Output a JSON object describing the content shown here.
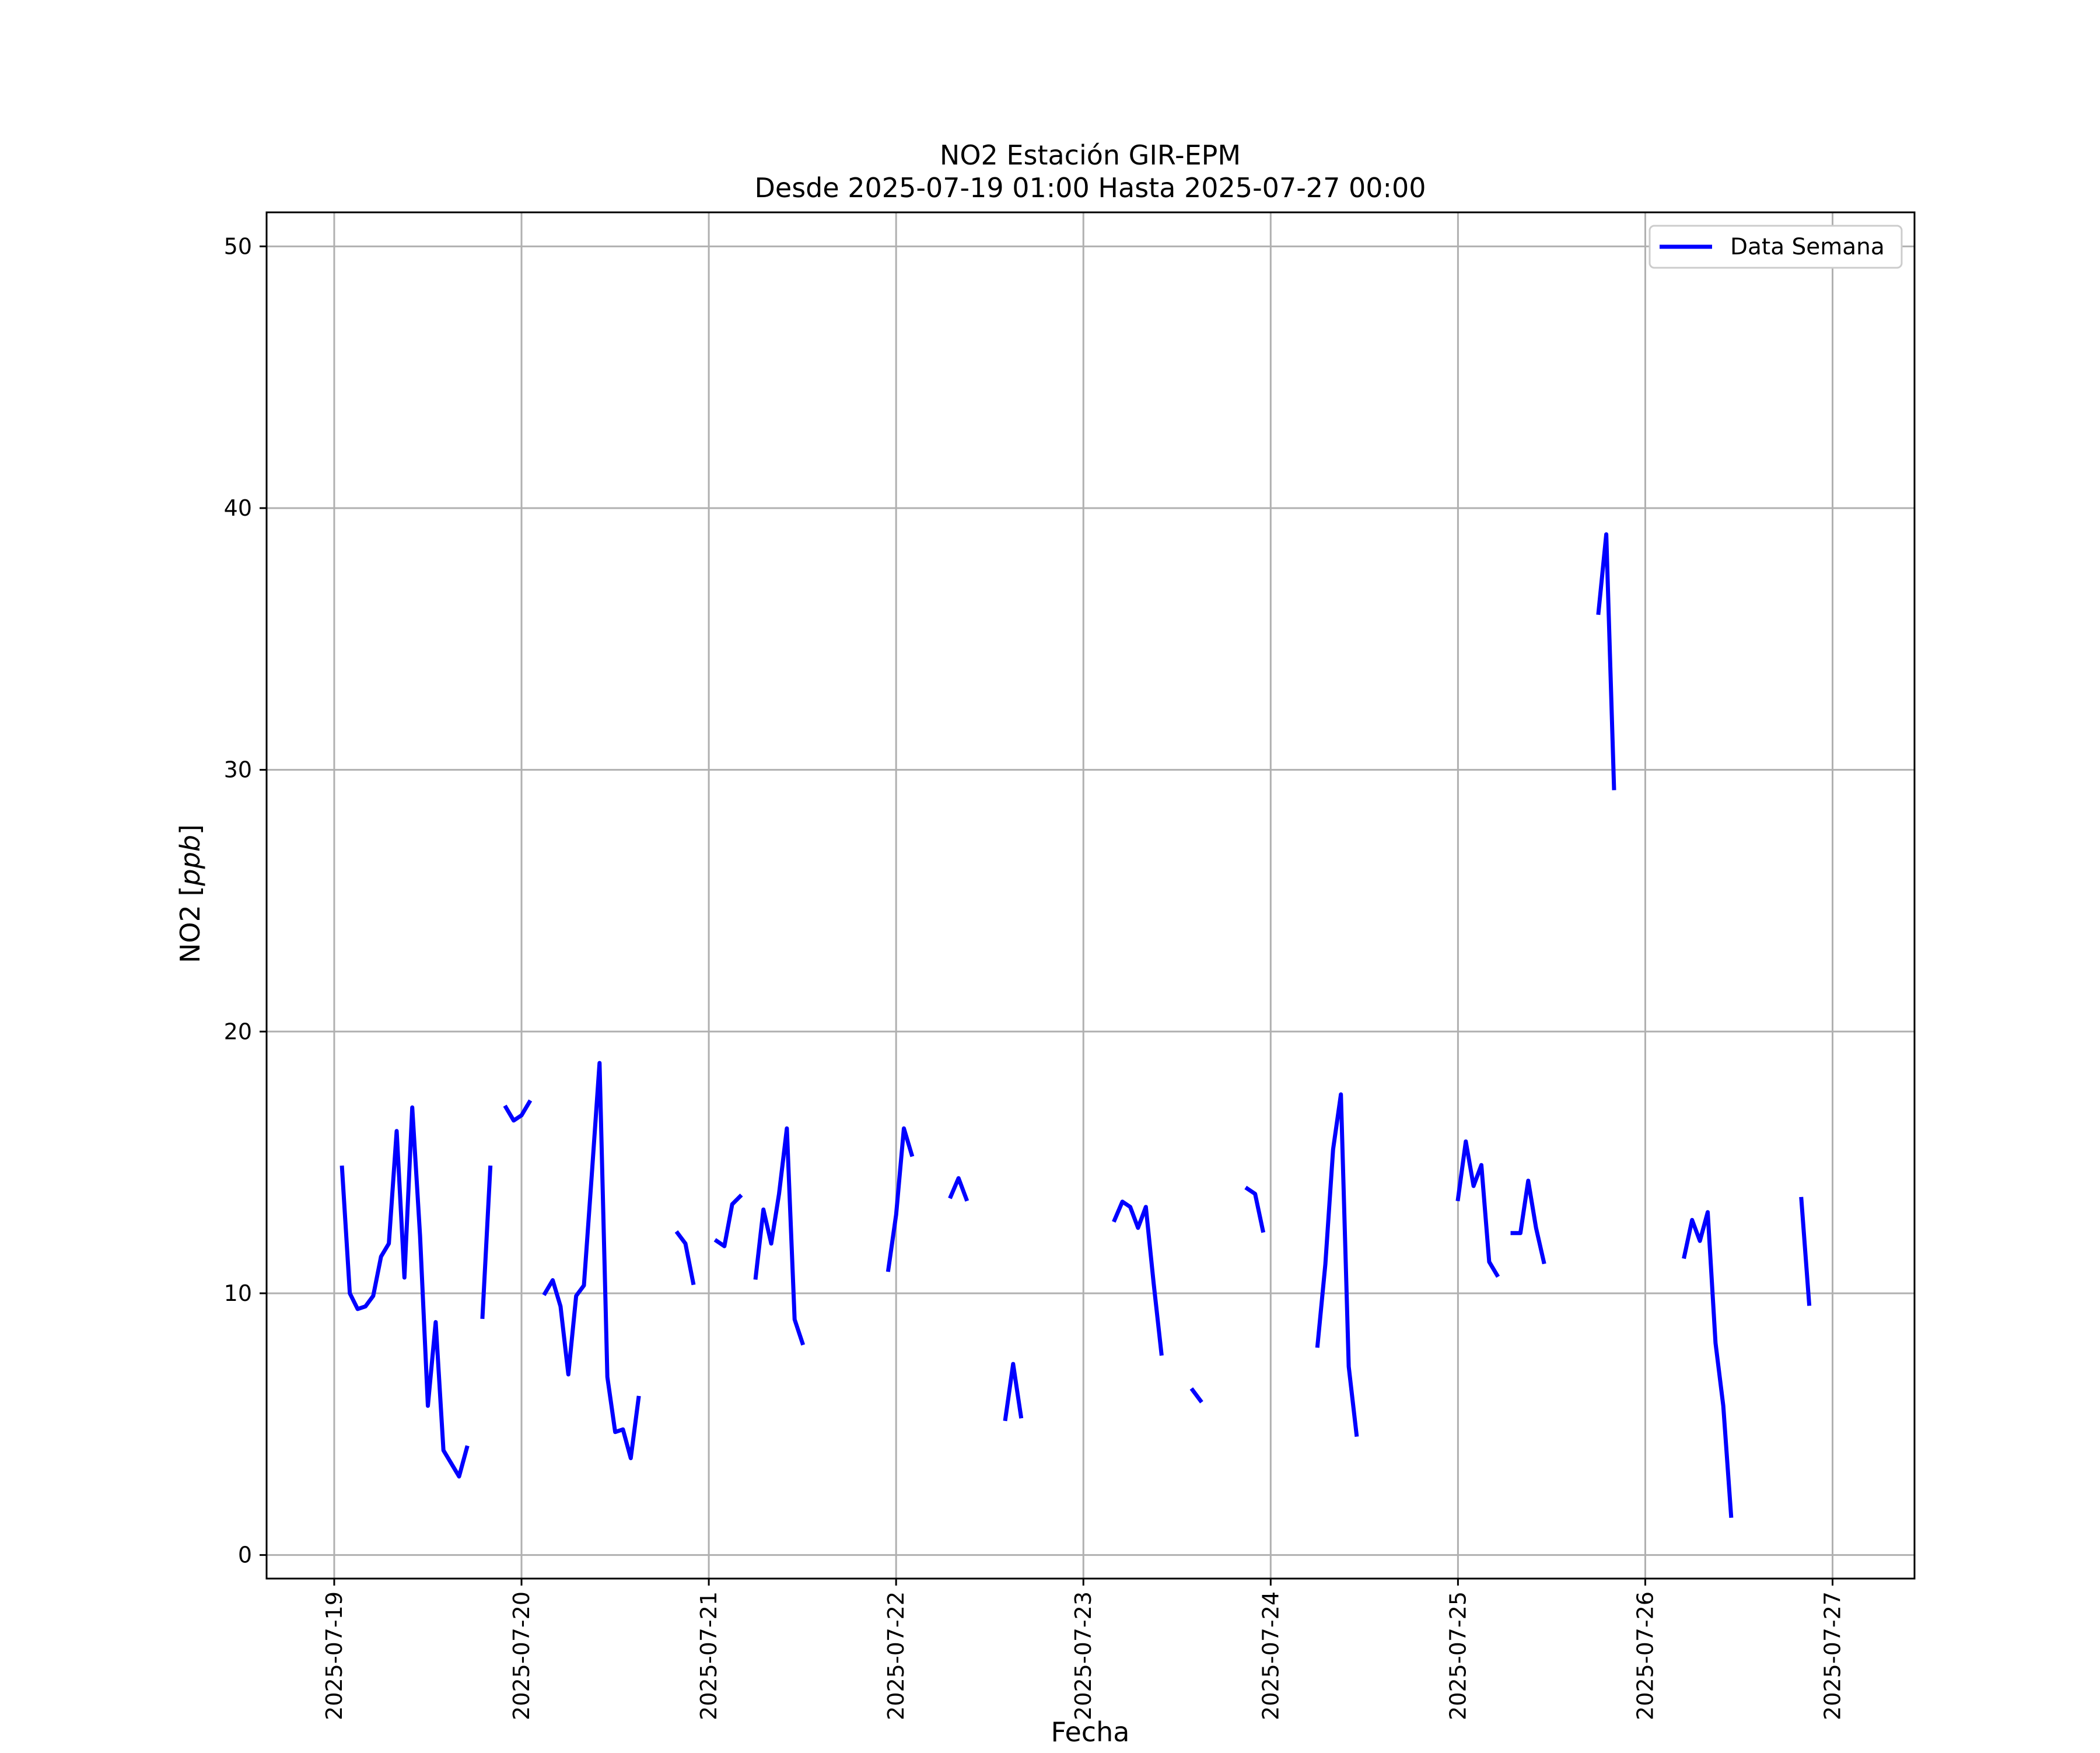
{
  "chart_data": {
    "type": "line",
    "title": "NO2 Estación GIR-EPM",
    "subtitle": "Desde 2025-07-19 01:00 Hasta 2025-07-27 00:00",
    "xlabel": "Fecha",
    "ylabel_prefix": "NO2 [",
    "ylabel_unit": "ppb",
    "ylabel_suffix": "]",
    "x_type": "datetime",
    "xlim": [
      "2025-07-18 15:20",
      "2025-07-27 10:30"
    ],
    "ylim": [
      -0.9,
      51.3
    ],
    "x_ticks": [
      "2025-07-19",
      "2025-07-20",
      "2025-07-21",
      "2025-07-22",
      "2025-07-23",
      "2025-07-24",
      "2025-07-25",
      "2025-07-26",
      "2025-07-27"
    ],
    "y_ticks": [
      0,
      10,
      20,
      30,
      40,
      50
    ],
    "grid": true,
    "legend_position": "upper right",
    "series": [
      {
        "name": "Data Semana",
        "color": "#0000ff",
        "segments": [
          [
            [
              "2025-07-19 01:00",
              14.8
            ],
            [
              "2025-07-19 02:00",
              10.0
            ],
            [
              "2025-07-19 03:00",
              9.4
            ],
            [
              "2025-07-19 04:00",
              9.5
            ],
            [
              "2025-07-19 05:00",
              9.9
            ],
            [
              "2025-07-19 06:00",
              11.4
            ],
            [
              "2025-07-19 07:00",
              11.9
            ],
            [
              "2025-07-19 08:00",
              16.2
            ],
            [
              "2025-07-19 09:00",
              10.6
            ],
            [
              "2025-07-19 10:00",
              17.1
            ],
            [
              "2025-07-19 11:00",
              12.2
            ],
            [
              "2025-07-19 12:00",
              5.7
            ],
            [
              "2025-07-19 13:00",
              8.9
            ],
            [
              "2025-07-19 14:00",
              4.0
            ],
            [
              "2025-07-19 15:00",
              3.5
            ],
            [
              "2025-07-19 16:00",
              3.0
            ],
            [
              "2025-07-19 17:00",
              4.1
            ]
          ],
          [
            [
              "2025-07-19 19:00",
              9.1
            ],
            [
              "2025-07-19 20:00",
              14.8
            ]
          ],
          [
            [
              "2025-07-19 22:00",
              17.1
            ],
            [
              "2025-07-19 23:00",
              16.6
            ],
            [
              "2025-07-20 00:00",
              16.8
            ],
            [
              "2025-07-20 01:00",
              17.3
            ]
          ],
          [
            [
              "2025-07-20 03:00",
              10.0
            ],
            [
              "2025-07-20 04:00",
              10.5
            ],
            [
              "2025-07-20 05:00",
              9.5
            ],
            [
              "2025-07-20 06:00",
              6.9
            ],
            [
              "2025-07-20 07:00",
              9.9
            ],
            [
              "2025-07-20 08:00",
              10.3
            ],
            [
              "2025-07-20 09:00",
              14.5
            ],
            [
              "2025-07-20 10:00",
              18.8
            ],
            [
              "2025-07-20 11:00",
              6.8
            ],
            [
              "2025-07-20 12:00",
              4.7
            ],
            [
              "2025-07-20 13:00",
              4.8
            ],
            [
              "2025-07-20 14:00",
              3.7
            ],
            [
              "2025-07-20 15:00",
              6.0
            ]
          ],
          [
            [
              "2025-07-20 20:00",
              12.3
            ],
            [
              "2025-07-20 21:00",
              11.9
            ],
            [
              "2025-07-20 22:00",
              10.4
            ]
          ],
          [
            [
              "2025-07-21 01:00",
              12.0
            ],
            [
              "2025-07-21 02:00",
              11.8
            ],
            [
              "2025-07-21 03:00",
              13.4
            ],
            [
              "2025-07-21 04:00",
              13.7
            ]
          ],
          [
            [
              "2025-07-21 06:00",
              10.6
            ],
            [
              "2025-07-21 07:00",
              13.2
            ],
            [
              "2025-07-21 08:00",
              11.9
            ],
            [
              "2025-07-21 09:00",
              13.8
            ],
            [
              "2025-07-21 10:00",
              16.3
            ],
            [
              "2025-07-21 11:00",
              9.0
            ],
            [
              "2025-07-21 12:00",
              8.1
            ]
          ],
          [
            [
              "2025-07-21 23:00",
              10.9
            ],
            [
              "2025-07-22 00:00",
              13.0
            ],
            [
              "2025-07-22 01:00",
              16.3
            ],
            [
              "2025-07-22 02:00",
              15.3
            ]
          ],
          [
            [
              "2025-07-22 07:00",
              13.7
            ],
            [
              "2025-07-22 08:00",
              14.4
            ],
            [
              "2025-07-22 09:00",
              13.6
            ]
          ],
          [
            [
              "2025-07-22 14:00",
              5.2
            ],
            [
              "2025-07-22 15:00",
              7.3
            ],
            [
              "2025-07-22 16:00",
              5.3
            ]
          ],
          [
            [
              "2025-07-23 04:00",
              12.8
            ],
            [
              "2025-07-23 05:00",
              13.5
            ],
            [
              "2025-07-23 06:00",
              13.3
            ],
            [
              "2025-07-23 07:00",
              12.5
            ],
            [
              "2025-07-23 08:00",
              13.3
            ],
            [
              "2025-07-23 09:00",
              10.4
            ],
            [
              "2025-07-23 10:00",
              7.7
            ]
          ],
          [
            [
              "2025-07-23 14:00",
              6.3
            ],
            [
              "2025-07-23 15:00",
              5.9
            ]
          ],
          [
            [
              "2025-07-23 21:00",
              14.0
            ],
            [
              "2025-07-23 22:00",
              13.8
            ],
            [
              "2025-07-23 23:00",
              12.4
            ]
          ],
          [
            [
              "2025-07-24 06:00",
              8.0
            ],
            [
              "2025-07-24 07:00",
              11.1
            ],
            [
              "2025-07-24 08:00",
              15.5
            ],
            [
              "2025-07-24 09:00",
              17.6
            ],
            [
              "2025-07-24 10:00",
              7.2
            ],
            [
              "2025-07-24 11:00",
              4.6
            ]
          ],
          [
            [
              "2025-07-25 00:00",
              13.6
            ],
            [
              "2025-07-25 01:00",
              15.8
            ],
            [
              "2025-07-25 02:00",
              14.1
            ],
            [
              "2025-07-25 03:00",
              14.9
            ],
            [
              "2025-07-25 04:00",
              11.2
            ],
            [
              "2025-07-25 05:00",
              10.7
            ]
          ],
          [
            [
              "2025-07-25 07:00",
              12.3
            ],
            [
              "2025-07-25 08:00",
              12.3
            ],
            [
              "2025-07-25 09:00",
              14.3
            ],
            [
              "2025-07-25 10:00",
              12.5
            ],
            [
              "2025-07-25 11:00",
              11.2
            ]
          ],
          [
            [
              "2025-07-25 18:00",
              36.0
            ],
            [
              "2025-07-25 19:00",
              39.0
            ],
            [
              "2025-07-25 20:00",
              29.3
            ]
          ],
          [
            [
              "2025-07-26 05:00",
              11.4
            ],
            [
              "2025-07-26 06:00",
              12.8
            ],
            [
              "2025-07-26 07:00",
              12.0
            ],
            [
              "2025-07-26 08:00",
              13.1
            ],
            [
              "2025-07-26 09:00",
              8.1
            ],
            [
              "2025-07-26 10:00",
              5.7
            ],
            [
              "2025-07-26 11:00",
              1.5
            ]
          ],
          [
            [
              "2025-07-26 20:00",
              13.6
            ],
            [
              "2025-07-26 21:00",
              9.6
            ]
          ]
        ]
      }
    ]
  }
}
